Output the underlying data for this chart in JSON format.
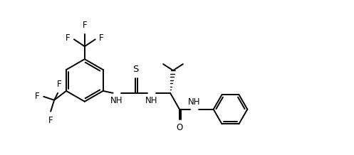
{
  "bg_color": "#ffffff",
  "line_color": "#000000",
  "lw": 1.4,
  "fs": 8.5,
  "fig_width": 4.97,
  "fig_height": 2.18,
  "dpi": 100,
  "xlim": [
    0,
    4.97
  ],
  "ylim": [
    0,
    2.18
  ]
}
